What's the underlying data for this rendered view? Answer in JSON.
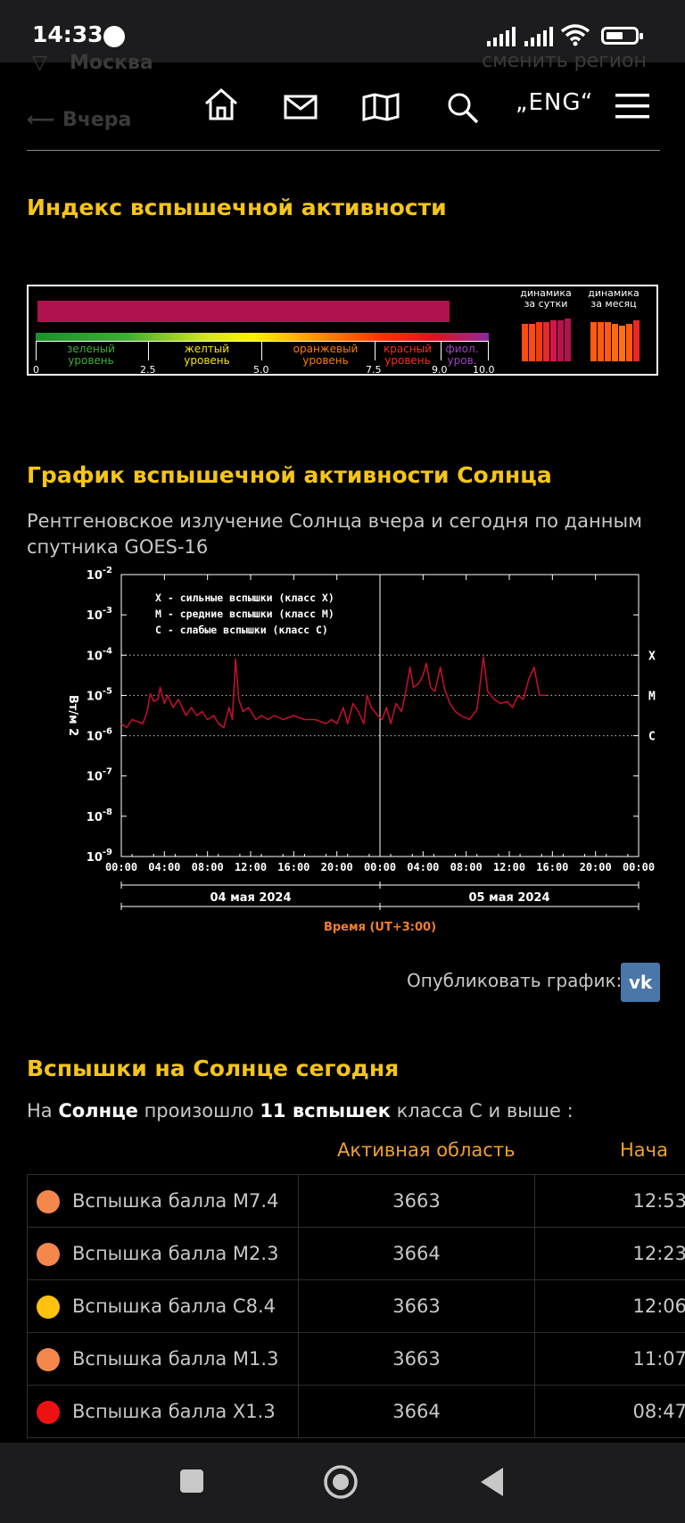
{
  "status_bar": {
    "time": "14:33"
  },
  "header": {
    "region_city": "Москва",
    "change_region": "сменить регион",
    "back_label": "Вчера",
    "lang": "„ENG“",
    "icons": [
      "home-icon",
      "mail-icon",
      "map-icon",
      "search-icon",
      "menu-icon"
    ]
  },
  "index_section": {
    "title": "Индекс вспышечной активности",
    "current_value": 9.1,
    "scale_ticks": [
      "0",
      "2.5",
      "5.0",
      "7.5",
      "9.0",
      "10.0"
    ],
    "levels": [
      {
        "line1": "зеленый",
        "line2": "уровень",
        "color": "#3fae33"
      },
      {
        "line1": "желтый",
        "line2": "уровень",
        "color": "#f5e400"
      },
      {
        "line1": "оранжевый",
        "line2": "уровень",
        "color": "#ff7a00"
      },
      {
        "line1": "красный",
        "line2": "уровень",
        "color": "#ff2a1a"
      },
      {
        "line1": "фиол.",
        "line2": "уров.",
        "color": "#a040c0"
      }
    ],
    "dyn_day": {
      "line1": "динамика",
      "line2": "за сутки"
    },
    "dyn_month": {
      "line1": "динамика",
      "line2": "за месяц"
    },
    "bar_color": "#b0124f"
  },
  "chart_section": {
    "title": "График вспышечной активности Солнца",
    "description": "Рентгеновское излучение Солнца вчера и сегодня по данным спутника GOES-16"
  },
  "chart_data": {
    "type": "line",
    "ylabel": "Вт/м 2",
    "xlabel": "Время (UT+3:00)",
    "y_scale": "log",
    "ylim": [
      1e-09,
      0.01
    ],
    "y_ticks": [
      "10-2",
      "10-3",
      "10-4",
      "10-5",
      "10-6",
      "10-7",
      "10-8",
      "10-9"
    ],
    "x_ticks": [
      "00:00",
      "04:00",
      "08:00",
      "12:00",
      "16:00",
      "20:00",
      "00:00",
      "04:00",
      "08:00",
      "12:00",
      "16:00",
      "20:00",
      "00:00"
    ],
    "date_labels": [
      "04 мая 2024",
      "05 мая 2024"
    ],
    "class_lines": [
      {
        "label": "X",
        "value": 0.0001
      },
      {
        "label": "M",
        "value": 1e-05
      },
      {
        "label": "C",
        "value": 1e-06
      }
    ],
    "legend": [
      "X - сильные вспышки (класс X)",
      "M - средние вспышки (класс M)",
      "C - слабые вспышки (класс C)"
    ],
    "series": [
      {
        "color": "#c8102e",
        "points": [
          [
            0,
            -5.7
          ],
          [
            0.5,
            -5.8
          ],
          [
            1,
            -5.6
          ],
          [
            2,
            -5.7
          ],
          [
            2.4,
            -5.4
          ],
          [
            2.7,
            -4.95
          ],
          [
            3,
            -5.15
          ],
          [
            3.4,
            -5.1
          ],
          [
            3.6,
            -4.8
          ],
          [
            4,
            -5.2
          ],
          [
            4.3,
            -5.0
          ],
          [
            4.8,
            -5.3
          ],
          [
            5.3,
            -5.1
          ],
          [
            6,
            -5.5
          ],
          [
            6.5,
            -5.3
          ],
          [
            7,
            -5.5
          ],
          [
            7.5,
            -5.4
          ],
          [
            8,
            -5.6
          ],
          [
            8.6,
            -5.5
          ],
          [
            9,
            -5.7
          ],
          [
            9.5,
            -5.8
          ],
          [
            10,
            -5.3
          ],
          [
            10.3,
            -5.6
          ],
          [
            10.6,
            -4.1
          ],
          [
            10.9,
            -5.1
          ],
          [
            11.3,
            -5.4
          ],
          [
            11.8,
            -5.3
          ],
          [
            12.5,
            -5.6
          ],
          [
            13,
            -5.5
          ],
          [
            13.6,
            -5.6
          ],
          [
            14.2,
            -5.5
          ],
          [
            15,
            -5.6
          ],
          [
            16,
            -5.5
          ],
          [
            17,
            -5.6
          ],
          [
            18,
            -5.6
          ],
          [
            19,
            -5.7
          ],
          [
            19.5,
            -5.6
          ],
          [
            20,
            -5.7
          ],
          [
            20.6,
            -5.3
          ],
          [
            21,
            -5.7
          ],
          [
            21.5,
            -5.2
          ],
          [
            22,
            -5.4
          ],
          [
            22.5,
            -5.7
          ],
          [
            22.8,
            -5.0
          ],
          [
            23.2,
            -5.3
          ],
          [
            23.8,
            -5.5
          ],
          [
            24.2,
            -5.6
          ],
          [
            24.6,
            -5.3
          ],
          [
            25,
            -5.7
          ],
          [
            25.5,
            -5.2
          ],
          [
            26,
            -5.4
          ],
          [
            26.4,
            -4.9
          ],
          [
            26.8,
            -4.3
          ],
          [
            27.1,
            -4.8
          ],
          [
            27.6,
            -4.7
          ],
          [
            28,
            -4.5
          ],
          [
            28.3,
            -4.2
          ],
          [
            28.7,
            -4.8
          ],
          [
            29.1,
            -4.9
          ],
          [
            29.6,
            -4.3
          ],
          [
            30,
            -4.85
          ],
          [
            30.5,
            -5.2
          ],
          [
            31,
            -5.4
          ],
          [
            31.5,
            -5.5
          ],
          [
            32.3,
            -5.6
          ],
          [
            33,
            -5.35
          ],
          [
            33.6,
            -4.05
          ],
          [
            34,
            -4.9
          ],
          [
            34.6,
            -5.1
          ],
          [
            35.2,
            -5.2
          ],
          [
            35.8,
            -5.15
          ],
          [
            36.3,
            -5.3
          ],
          [
            36.8,
            -5.0
          ],
          [
            37.3,
            -5.1
          ],
          [
            37.8,
            -4.6
          ],
          [
            38.3,
            -4.3
          ],
          [
            38.8,
            -5.0
          ],
          [
            39.5,
            -5.0
          ]
        ]
      }
    ]
  },
  "publish": {
    "label": "Опубликовать график:",
    "vk": "vk"
  },
  "flares_section": {
    "title": "Вспышки на Солнце сегодня",
    "intro_prefix": "На ",
    "intro_sun": "Солнце",
    "intro_mid": " произошло ",
    "intro_count": "11 вспышек",
    "intro_suffix": " класса C и выше :",
    "col_region": "Активная область",
    "col_start": "Нача",
    "rows": [
      {
        "name": "Вспышка балла M7.4",
        "region": "3663",
        "start": "12:53",
        "color": "#f4874b"
      },
      {
        "name": "Вспышка балла M2.3",
        "region": "3664",
        "start": "12:23",
        "color": "#f4874b"
      },
      {
        "name": "Вспышка балла C8.4",
        "region": "3663",
        "start": "12:06",
        "color": "#ffc20e"
      },
      {
        "name": "Вспышка балла M1.3",
        "region": "3663",
        "start": "11:07",
        "color": "#f4874b"
      },
      {
        "name": "Вспышка балла X1.3",
        "region": "3664",
        "start": "08:47",
        "color": "#ee1111"
      }
    ]
  }
}
